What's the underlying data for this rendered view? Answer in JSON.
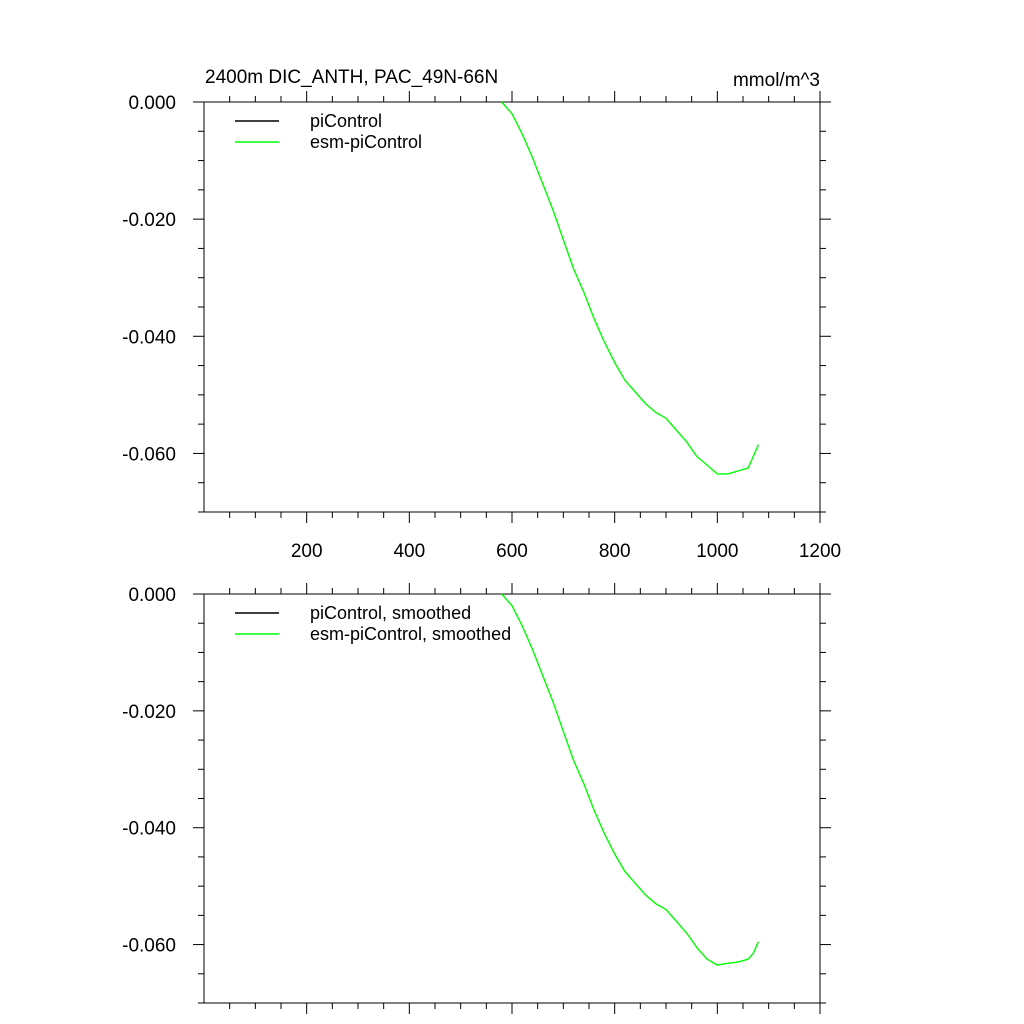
{
  "title": "2400m DIC_ANTH, PAC_49N-66N",
  "units": "mmol/m^3",
  "chart_data": [
    {
      "type": "line",
      "panel": "top",
      "title": "2400m DIC_ANTH, PAC_49N-66N",
      "units_label": "mmol/m^3",
      "xlim": [
        0,
        1200
      ],
      "ylim": [
        -0.07,
        0.0
      ],
      "x_ticks": [
        200,
        400,
        600,
        800,
        1000,
        1200
      ],
      "x_tick_labels": [
        "200",
        "400",
        "600",
        "800",
        "1000",
        "1200"
      ],
      "y_ticks": [
        0.0,
        -0.02,
        -0.04,
        -0.06
      ],
      "y_tick_labels": [
        "0.000",
        "-0.020",
        "-0.040",
        "-0.060"
      ],
      "legend_position": "top-left",
      "grid": false,
      "series": [
        {
          "name": "piControl",
          "color": "#000000",
          "x": [],
          "y": []
        },
        {
          "name": "esm-piControl",
          "color": "#00ff00",
          "x": [
            580,
            600,
            620,
            640,
            660,
            680,
            700,
            720,
            740,
            760,
            780,
            800,
            820,
            840,
            860,
            880,
            900,
            920,
            940,
            960,
            980,
            1000,
            1020,
            1040,
            1060,
            1070,
            1080
          ],
          "y": [
            0.0,
            -0.002,
            -0.0055,
            -0.0095,
            -0.014,
            -0.0185,
            -0.0235,
            -0.0285,
            -0.0325,
            -0.037,
            -0.041,
            -0.0445,
            -0.0475,
            -0.0495,
            -0.0515,
            -0.053,
            -0.054,
            -0.056,
            -0.058,
            -0.0605,
            -0.062,
            -0.0635,
            -0.0635,
            -0.063,
            -0.0625,
            -0.0605,
            -0.0585
          ]
        }
      ]
    },
    {
      "type": "line",
      "panel": "bottom",
      "xlim": [
        0,
        1200
      ],
      "ylim": [
        -0.07,
        0.0
      ],
      "x_ticks": [
        200,
        400,
        600,
        800,
        1000,
        1200
      ],
      "y_ticks": [
        0.0,
        -0.02,
        -0.04,
        -0.06
      ],
      "y_tick_labels": [
        "0.000",
        "-0.020",
        "-0.040",
        "-0.060"
      ],
      "legend_position": "top-left",
      "grid": false,
      "series": [
        {
          "name": "piControl, smoothed",
          "color": "#000000",
          "x": [],
          "y": []
        },
        {
          "name": "esm-piControl, smoothed",
          "color": "#00ff00",
          "x": [
            580,
            600,
            620,
            640,
            660,
            680,
            700,
            720,
            740,
            760,
            780,
            800,
            820,
            840,
            860,
            880,
            900,
            920,
            940,
            960,
            980,
            1000,
            1020,
            1040,
            1060,
            1070,
            1080
          ],
          "y": [
            0.0,
            -0.002,
            -0.0055,
            -0.0095,
            -0.014,
            -0.0185,
            -0.0235,
            -0.0285,
            -0.0325,
            -0.037,
            -0.041,
            -0.0445,
            -0.0475,
            -0.0495,
            -0.0515,
            -0.053,
            -0.054,
            -0.056,
            -0.058,
            -0.0605,
            -0.0625,
            -0.0635,
            -0.0632,
            -0.063,
            -0.0625,
            -0.0615,
            -0.0595
          ]
        }
      ]
    }
  ]
}
